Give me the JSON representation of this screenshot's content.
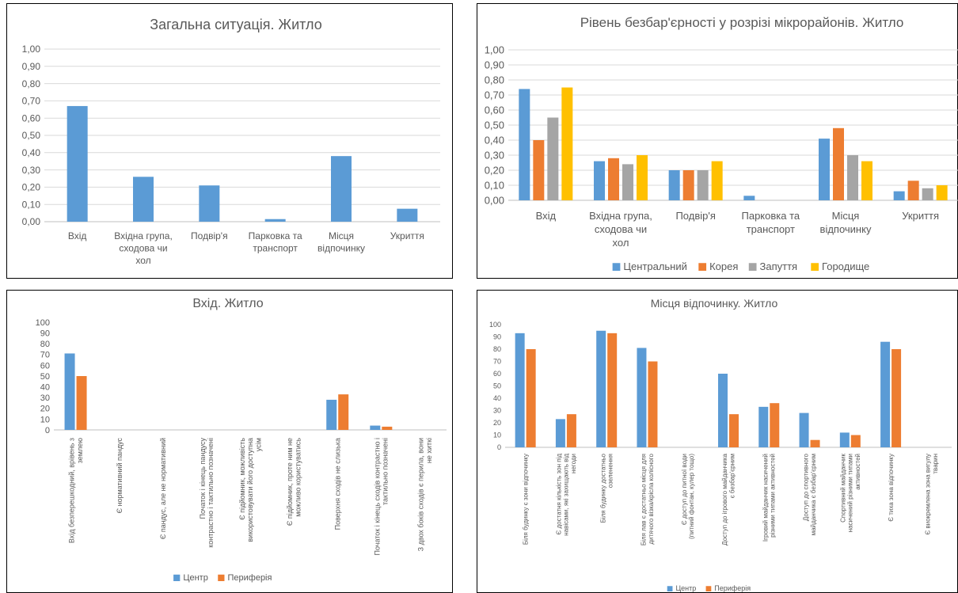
{
  "charts": {
    "colors": {
      "blue": "#5b9bd5",
      "orange": "#ed7d31",
      "gray": "#a5a5a5",
      "yellow": "#ffc000",
      "grid": "#d9d9d9",
      "axis": "#bfbfbf",
      "text": "#595959",
      "border": "#000000"
    },
    "labels": {
      "c1": {
        "title": "Загальна ситуація. Житло",
        "cats": [
          [
            "Вхід"
          ],
          [
            "Вхідна група,",
            "сходова чи",
            "хол"
          ],
          [
            "Подвір'я"
          ],
          [
            "Парковка та",
            "транспорт"
          ],
          [
            "Місця",
            "відпочинку"
          ],
          [
            "Укриття"
          ]
        ],
        "ticks": [
          "0,00",
          "0,10",
          "0,20",
          "0,30",
          "0,40",
          "0,50",
          "0,60",
          "0,70",
          "0,80",
          "0,90",
          "1,00"
        ]
      },
      "c2": {
        "title": "Рівень безбар'єрності у розрізі мікрорайонів. Житло",
        "cats": [
          [
            "Вхід"
          ],
          [
            "Вхідна група,",
            "сходова чи",
            "хол"
          ],
          [
            "Подвір'я"
          ],
          [
            "Парковка та",
            "транспорт"
          ],
          [
            "Місця",
            "відпочинку"
          ],
          [
            "Укриття"
          ]
        ],
        "ticks": [
          "0,00",
          "0,10",
          "0,20",
          "0,30",
          "0,40",
          "0,50",
          "0,60",
          "0,70",
          "0,80",
          "0,90",
          "1,00"
        ],
        "legend": [
          "Центральний",
          "Корея",
          "Запуття",
          "Городище"
        ]
      },
      "c3": {
        "title": "Вхід. Житло",
        "cats": [
          [
            "Вхід безперешкодний, врівень з",
            "землею"
          ],
          [
            "Є нормативний пандус"
          ],
          [
            "Є пандус, але не нормативний"
          ],
          [
            "Початок і кінець пандусу",
            "контрастно і тактильно позначені"
          ],
          [
            "Є підйомник, можливість",
            "використовувати його доступна",
            "усім"
          ],
          [
            "Є підйомник, проте ним не",
            "можливо користуватись"
          ],
          [
            "Поверхня сходів не слизька"
          ],
          [
            "Початок і кінець сходів контрастно і",
            "тактильно позначені"
          ],
          [
            "З двох боків сходів є перила, вони",
            "не хиткі"
          ]
        ],
        "ticks": [
          "0",
          "10",
          "20",
          "30",
          "40",
          "50",
          "60",
          "70",
          "80",
          "90",
          "100"
        ],
        "legend": [
          "Центр",
          "Периферія"
        ]
      },
      "c4": {
        "title": "Місця відпочинку. Житло",
        "cats": [
          [
            "Біля будинку є зони відпочинку"
          ],
          [
            "Є достатня кількість зон під",
            "навісами, які захищають від",
            "негоди"
          ],
          [
            "Біля будинку достатньо",
            "озеленення"
          ],
          [
            "Біля лав є достатньо місця для",
            "дитячого візка/крісла колісного"
          ],
          [
            "Є доступ до питної води",
            "(питний фонтан, кулер тощо)"
          ],
          [
            "Доступ до ігрового майданчика",
            "є безбар'єрним"
          ],
          [
            "Ігровий майданчик насичений",
            "різними типами активностей"
          ],
          [
            "Доступ до спортивного",
            "майданчика є безбар'єрним"
          ],
          [
            "Спортивний майданчик",
            "насичений різними типами",
            "активностей"
          ],
          [
            "Є тиха зона відпочинку"
          ],
          [
            "Є виокремлена зона вигулу",
            "тварин"
          ]
        ],
        "ticks": [
          "0",
          "10",
          "20",
          "30",
          "40",
          "50",
          "60",
          "70",
          "80",
          "90",
          "100"
        ],
        "legend": [
          "Центр",
          "Периферія"
        ]
      }
    }
  },
  "chart_data": [
    {
      "type": "bar",
      "title": "Загальна ситуація. Житло",
      "categories": [
        "Вхід",
        "Вхідна група, сходова чи хол",
        "Подвір'я",
        "Парковка та транспорт",
        "Місця відпочинку",
        "Укриття"
      ],
      "series": [
        {
          "values": [
            0.67,
            0.26,
            0.21,
            0.015,
            0.38,
            0.075
          ]
        }
      ],
      "ylim": [
        0,
        1
      ],
      "ytick_step": 0.1,
      "grid": true
    },
    {
      "type": "bar",
      "title": "Рівень безбар'єрності у розрізі мікрорайонів. Житло",
      "categories": [
        "Вхід",
        "Вхідна група, сходова чи хол",
        "Подвір'я",
        "Парковка та транспорт",
        "Місця відпочинку",
        "Укриття"
      ],
      "series": [
        {
          "name": "Центральний",
          "values": [
            0.74,
            0.26,
            0.2,
            0.03,
            0.41,
            0.06
          ]
        },
        {
          "name": "Корея",
          "values": [
            0.4,
            0.28,
            0.2,
            0,
            0.48,
            0.13
          ]
        },
        {
          "name": "Запуття",
          "values": [
            0.55,
            0.24,
            0.2,
            0,
            0.3,
            0.08
          ]
        },
        {
          "name": "Городище",
          "values": [
            0.75,
            0.3,
            0.26,
            0,
            0.26,
            0.1
          ]
        }
      ],
      "ylim": [
        0,
        1
      ],
      "ytick_step": 0.1,
      "grid": true,
      "legend": "bottom"
    },
    {
      "type": "bar",
      "title": "Вхід. Житло",
      "categories": [
        "Вхід безперешкодний, врівень з землею",
        "Є нормативний пандус",
        "Є пандус, але не нормативний",
        "Початок і кінець пандусу контрастно і тактильно позначені",
        "Є підйомник, можливість використовувати його доступна усім",
        "Є підйомник, проте ним не можливо користуватись",
        "Поверхня сходів не слизька",
        "Початок і кінець сходів контрастно і тактильно позначені",
        "З двох боків сходів є перила, вони не хиткі"
      ],
      "series": [
        {
          "name": "Центр",
          "values": [
            71,
            0,
            0,
            0,
            0,
            0,
            28,
            4,
            0
          ]
        },
        {
          "name": "Периферія",
          "values": [
            50,
            0,
            0,
            0,
            0,
            0,
            33,
            3,
            0
          ]
        }
      ],
      "ylim": [
        0,
        100
      ],
      "ytick_step": 10,
      "grid": false,
      "legend": "bottom"
    },
    {
      "type": "bar",
      "title": "Місця відпочинку. Житло",
      "categories": [
        "Біля будинку є зони відпочинку",
        "Є достатня кількість зон під навісами, які захищають від негоди",
        "Біля будинку достатньо озеленення",
        "Біля лав є достатньо місця для дитячого візка/крісла колісного",
        "Є доступ до питної води (питний фонтан, кулер тощо)",
        "Доступ до ігрового майданчика є безбар'єрним",
        "Ігровий майданчик насичений різними типами активностей",
        "Доступ до спортивного майданчика є безбар'єрним",
        "Спортивний майданчик насичений різними типами активностей",
        "Є тиха зона відпочинку",
        "Є виокремлена зона вигулу тварин"
      ],
      "series": [
        {
          "name": "Центр",
          "values": [
            93,
            23,
            95,
            81,
            0,
            60,
            33,
            28,
            12,
            86,
            0
          ]
        },
        {
          "name": "Периферія",
          "values": [
            80,
            27,
            93,
            70,
            0,
            27,
            36,
            6,
            10,
            80,
            0
          ]
        }
      ],
      "ylim": [
        0,
        100
      ],
      "ytick_step": 10,
      "grid": false,
      "legend": "bottom"
    }
  ]
}
